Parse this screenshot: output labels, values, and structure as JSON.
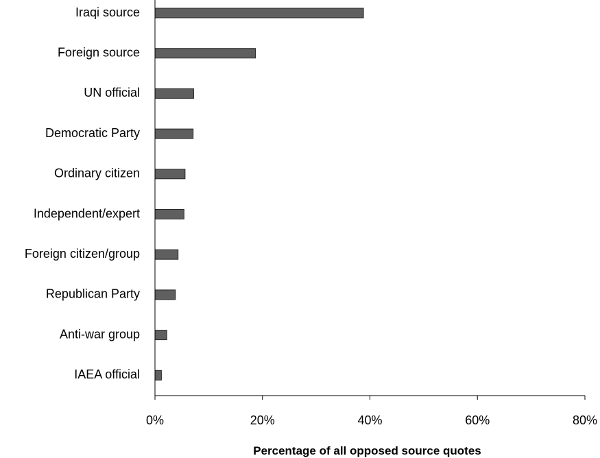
{
  "chart_data": {
    "type": "bar",
    "orientation": "horizontal",
    "categories": [
      "Iraqi source",
      "Foreign source",
      "UN official",
      "Democratic Party",
      "Ordinary citizen",
      "Independent/expert",
      "Foreign citizen/group",
      "Republican Party",
      "Anti-war group",
      "IAEA official"
    ],
    "values": [
      38.8,
      18.7,
      7.2,
      7.1,
      5.6,
      5.4,
      4.3,
      3.8,
      2.2,
      1.2
    ],
    "xlabel": "Percentage of all opposed source quotes",
    "ylabel": "",
    "xlim": [
      0,
      80
    ],
    "xticks": [
      0,
      20,
      40,
      60,
      80
    ],
    "xtick_labels": [
      "0%",
      "20%",
      "40%",
      "60%",
      "80%"
    ],
    "grid": false,
    "colors": {
      "bar_fill": "#5f5f5f",
      "bar_stroke": "#262626"
    }
  }
}
